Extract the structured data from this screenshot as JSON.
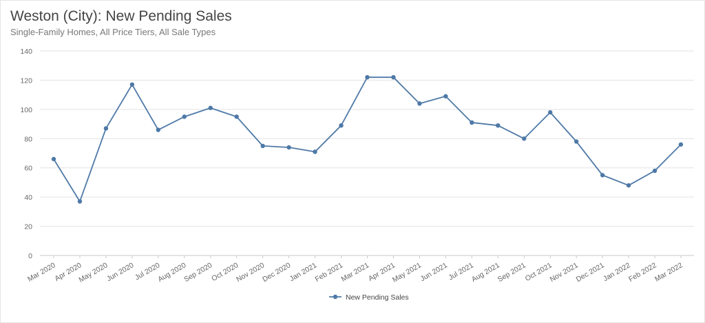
{
  "chart_data": {
    "type": "line",
    "title": "Weston (City): New Pending Sales",
    "subtitle": "Single-Family Homes, All Price Tiers, All Sale Types",
    "xlabel": "",
    "ylabel": "",
    "ylim": [
      0,
      140
    ],
    "yticks": [
      "0",
      "20",
      "40",
      "60",
      "80",
      "100",
      "120",
      "140"
    ],
    "grid": true,
    "legend_position": "bottom-center",
    "categories": [
      "Mar 2020",
      "Apr 2020",
      "May 2020",
      "Jun 2020",
      "Jul 2020",
      "Aug 2020",
      "Sep 2020",
      "Oct 2020",
      "Nov 2020",
      "Dec 2020",
      "Jan 2021",
      "Feb 2021",
      "Mar 2021",
      "Apr 2021",
      "May 2021",
      "Jun 2021",
      "Jul 2021",
      "Aug 2021",
      "Sep 2021",
      "Oct 2021",
      "Nov 2021",
      "Dec 2021",
      "Jan 2022",
      "Feb 2022",
      "Mar 2022"
    ],
    "series": [
      {
        "name": "New Pending Sales",
        "color": "#4e79a7",
        "values": [
          66,
          37,
          87,
          117,
          86,
          95,
          101,
          95,
          75,
          74,
          71,
          89,
          122,
          122,
          104,
          109,
          91,
          89,
          80,
          98,
          78,
          55,
          48,
          58,
          76
        ]
      }
    ]
  }
}
